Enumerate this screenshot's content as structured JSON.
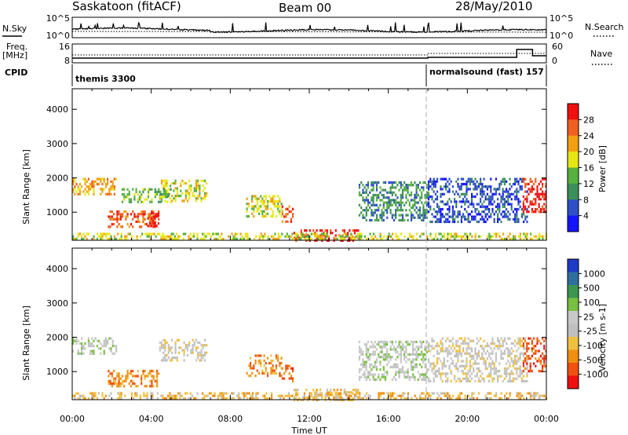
{
  "header": {
    "station": "Saskatoon (fitACF)",
    "beam": "Beam 00",
    "date": "28/May/2010"
  },
  "noise_panel": {
    "left_label": "N.Sky",
    "right_label": "N.Search",
    "left_ticks": [
      "10^5",
      "10^0"
    ],
    "right_ticks": [
      "10^5",
      "10^0"
    ]
  },
  "freq_panel": {
    "left_label_1": "Freq.",
    "left_label_2": "[MHz]",
    "left_ticks": [
      "16",
      "8"
    ],
    "right_label": "Nave",
    "right_ticks": [
      "60",
      "0"
    ]
  },
  "cpid_panel": {
    "label": "CPID",
    "modes": [
      {
        "name": "themis 3300",
        "start_hour": 0
      },
      {
        "name": "normalsound (fast) 157",
        "start_hour": 18
      }
    ]
  },
  "colors": {
    "power": [
      "#1414ff",
      "#2f4fc8",
      "#3c8f5a",
      "#58b040",
      "#e6e614",
      "#f0a010",
      "#f06020",
      "#f01010"
    ],
    "velocity": [
      "#f01010",
      "#f05010",
      "#f09010",
      "#f0c040",
      "#c0c0c0",
      "#c8c8c8",
      "#78c040",
      "#3c9650",
      "#2f6ea0",
      "#1e3cc8"
    ]
  },
  "chart_data": [
    {
      "type": "heatmap",
      "name": "power",
      "ylabel": "Slant Range [km]",
      "yticks": [
        1000,
        2000,
        3000,
        4000
      ],
      "xticks": [
        "00:00",
        "04:00",
        "08:00",
        "12:00",
        "16:00",
        "20:00",
        "00:00"
      ],
      "xlim": [
        0,
        24
      ],
      "ylim": [
        180,
        4600
      ],
      "colorbar_label": "Power [dB]",
      "colorbar_ticks": [
        "4",
        "8",
        "12",
        "16",
        "20",
        "24",
        "28"
      ],
      "colorbar_range": [
        0,
        30
      ],
      "regions": [
        {
          "t0": 0.0,
          "t1": 2.2,
          "r0": 1500,
          "r1": 2000,
          "level": 5
        },
        {
          "t0": 1.8,
          "t1": 4.4,
          "r0": 550,
          "r1": 1050,
          "level": 6
        },
        {
          "t0": 3.8,
          "t1": 4.4,
          "r0": 600,
          "r1": 1000,
          "level": 7
        },
        {
          "t0": 4.4,
          "t1": 6.8,
          "r0": 1350,
          "r1": 1950,
          "level": 4
        },
        {
          "t0": 2.5,
          "t1": 5.0,
          "r0": 1300,
          "r1": 1700,
          "level": 3
        },
        {
          "t0": 8.8,
          "t1": 10.6,
          "r0": 900,
          "r1": 1500,
          "level": 4
        },
        {
          "t0": 10.6,
          "t1": 11.2,
          "r0": 700,
          "r1": 1200,
          "level": 6
        },
        {
          "t0": 11.2,
          "t1": 14.5,
          "r0": 200,
          "r1": 500,
          "level": 7
        },
        {
          "t0": 14.5,
          "t1": 18.0,
          "r0": 800,
          "r1": 1900,
          "level": 2
        },
        {
          "t0": 18.0,
          "t1": 23.0,
          "r0": 700,
          "r1": 2000,
          "level": 1
        },
        {
          "t0": 22.8,
          "t1": 24.0,
          "r0": 1000,
          "r1": 2000,
          "level": 7
        },
        {
          "t0": 0.0,
          "t1": 24.0,
          "r0": 200,
          "r1": 400,
          "level": 4
        }
      ]
    },
    {
      "type": "heatmap",
      "name": "velocity",
      "ylabel": "Slant Range [km]",
      "xlabel": "Time UT",
      "yticks": [
        1000,
        2000,
        3000,
        4000
      ],
      "xticks": [
        "00:00",
        "04:00",
        "08:00",
        "12:00",
        "16:00",
        "20:00",
        "00:00"
      ],
      "xlim": [
        0,
        24
      ],
      "ylim": [
        180,
        4600
      ],
      "colorbar_label": "Velocity [m s-1]",
      "colorbar_ticks": [
        "1000",
        "500",
        "100",
        "25",
        "-25",
        "-100",
        "-500",
        "-1000"
      ],
      "regions": [
        {
          "t0": 0.0,
          "t1": 2.2,
          "r0": 1500,
          "r1": 2000,
          "level": 5
        },
        {
          "t0": 1.8,
          "t1": 4.4,
          "r0": 550,
          "r1": 1050,
          "level": 2
        },
        {
          "t0": 4.4,
          "t1": 6.8,
          "r0": 1350,
          "r1": 1950,
          "level": 4
        },
        {
          "t0": 8.8,
          "t1": 10.6,
          "r0": 900,
          "r1": 1500,
          "level": 2
        },
        {
          "t0": 10.6,
          "t1": 11.2,
          "r0": 700,
          "r1": 1200,
          "level": 1
        },
        {
          "t0": 11.2,
          "t1": 14.5,
          "r0": 200,
          "r1": 500,
          "level": 3
        },
        {
          "t0": 14.5,
          "t1": 18.0,
          "r0": 800,
          "r1": 1900,
          "level": 5
        },
        {
          "t0": 18.0,
          "t1": 23.0,
          "r0": 700,
          "r1": 2000,
          "level": 4
        },
        {
          "t0": 22.8,
          "t1": 24.0,
          "r0": 1000,
          "r1": 2000,
          "level": 1
        },
        {
          "t0": 0.0,
          "t1": 24.0,
          "r0": 200,
          "r1": 400,
          "level": 3
        }
      ]
    }
  ]
}
